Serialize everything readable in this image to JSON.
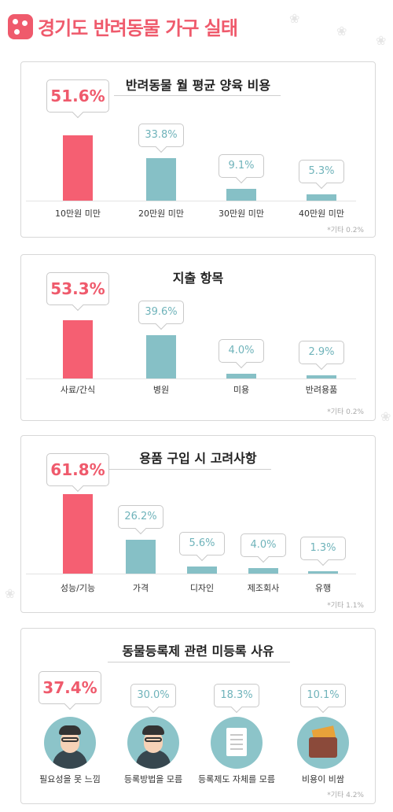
{
  "page": {
    "title": "경기도 반려동물 가구 실태"
  },
  "chart_data": [
    {
      "type": "bar",
      "title": "반려동물 월 평균 양육 비용",
      "categories": [
        "10만원 미만",
        "20만원 미만",
        "30만원 미만",
        "40만원 미만"
      ],
      "values": [
        51.6,
        33.8,
        9.1,
        5.3
      ],
      "labels": [
        "51.6%",
        "33.8%",
        "9.1%",
        "5.3%"
      ],
      "note": "*기타 0.2%"
    },
    {
      "type": "bar",
      "title": "지출 항목",
      "categories": [
        "사료/간식",
        "병원",
        "미용",
        "반려용품"
      ],
      "values": [
        53.3,
        39.6,
        4.0,
        2.9
      ],
      "labels": [
        "53.3%",
        "39.6%",
        "4.0%",
        "2.9%"
      ],
      "note": "*기타 0.2%"
    },
    {
      "type": "bar",
      "title": "용품 구입 시 고려사항",
      "categories": [
        "성능/기능",
        "가격",
        "디자인",
        "제조회사",
        "유행"
      ],
      "values": [
        61.8,
        26.2,
        5.6,
        4.0,
        1.3
      ],
      "labels": [
        "61.8%",
        "26.2%",
        "5.6%",
        "4.0%",
        "1.3%"
      ],
      "note": "*기타 1.1%"
    },
    {
      "type": "table",
      "title": "동물등록제 관련 미등록 사유",
      "categories": [
        "필요성을 못 느낌",
        "등록방법을 모름",
        "등록제도 자체를 모름",
        "비용이 비쌈"
      ],
      "values": [
        37.4,
        30.0,
        18.3,
        10.1
      ],
      "labels": [
        "37.4%",
        "30.0%",
        "18.3%",
        "10.1%"
      ],
      "icons": [
        "person-icon",
        "person-document-icon",
        "registration-card-icon",
        "wallet-icon"
      ],
      "note": "*기타 4.2%"
    }
  ],
  "colors": {
    "accent": "#ef5a6c",
    "bar_highlight": "#f55f72",
    "bar_other": "#86c0c6",
    "circle": "#8cc4c9"
  }
}
